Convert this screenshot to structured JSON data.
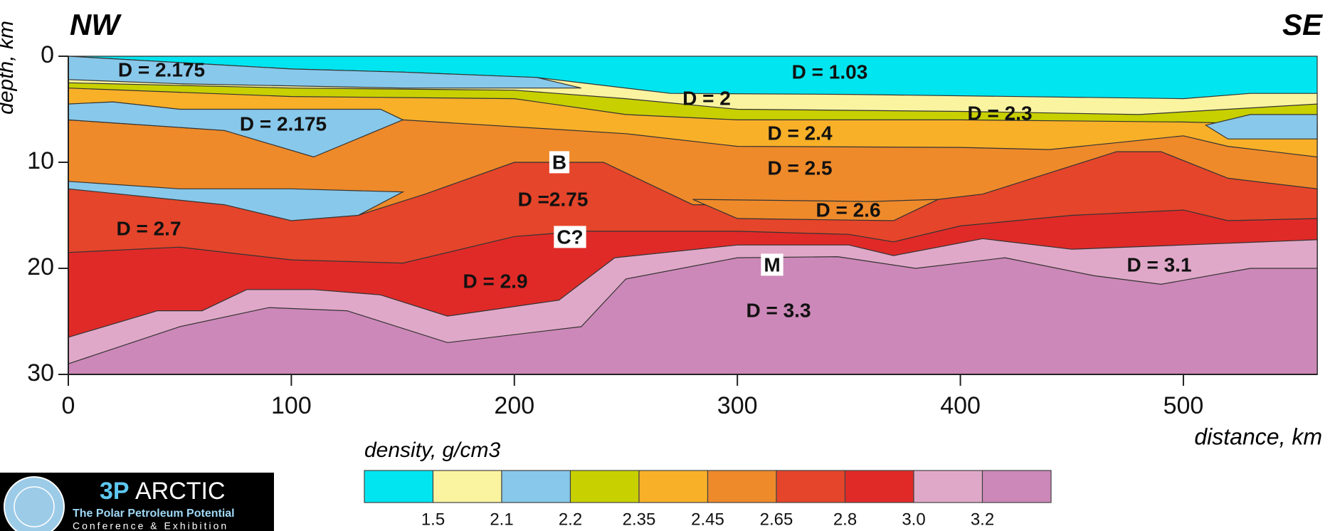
{
  "chart_data": {
    "type": "cross-section",
    "left_label": "NW",
    "right_label": "SE",
    "xlabel": "distance, km",
    "ylabel": "depth, km",
    "xlim": [
      0,
      560
    ],
    "ylim": [
      0,
      30
    ],
    "y_inverted": true,
    "xticks": [
      0,
      100,
      200,
      300,
      400,
      500
    ],
    "yticks": [
      0,
      10,
      20,
      30
    ],
    "bodies": [
      {
        "kind": "layer",
        "color": "#00e5f0",
        "x": [
          0,
          560
        ],
        "depth": [
          0,
          0
        ]
      },
      {
        "kind": "layer",
        "color": "#faf3a0",
        "x": [
          0,
          100,
          150,
          210,
          270,
          350,
          500,
          530,
          560
        ],
        "depth": [
          0,
          1.2,
          1.5,
          2,
          3.5,
          3.6,
          4,
          3.5,
          3.5
        ]
      },
      {
        "kind": "layer",
        "color": "#c8d000",
        "x": [
          0,
          100,
          200,
          250,
          300,
          400,
          480,
          520,
          560
        ],
        "depth": [
          2.5,
          3,
          3.2,
          4,
          5,
          5.2,
          5.5,
          5,
          4.5
        ]
      },
      {
        "kind": "layer",
        "color": "#f8b028",
        "x": [
          0,
          100,
          200,
          250,
          300,
          400,
          500,
          560
        ],
        "depth": [
          3,
          3.8,
          4,
          5.5,
          6,
          6,
          6.2,
          6.5
        ]
      },
      {
        "kind": "layer",
        "color": "#ee8a2a",
        "x": [
          0,
          70,
          110,
          150,
          250,
          300,
          400,
          440,
          500,
          520,
          560
        ],
        "depth": [
          6,
          7,
          9.3,
          6,
          7.3,
          8.5,
          8.6,
          8.8,
          7.5,
          8.5,
          9.5
        ]
      },
      {
        "kind": "layer",
        "color": "#e5452a",
        "x": [
          0,
          50,
          100,
          130,
          160,
          200,
          240,
          280,
          350,
          370,
          390,
          410,
          470,
          490,
          520,
          560
        ],
        "depth": [
          12.5,
          13,
          14,
          15,
          13,
          10,
          10,
          14,
          14,
          15.5,
          13.5,
          13,
          9,
          9,
          11.5,
          12.5
        ]
      },
      {
        "kind": "layer",
        "color": "#e02a28",
        "x": [
          0,
          50,
          100,
          150,
          200,
          230,
          300,
          350,
          370,
          400,
          450,
          500,
          520,
          560
        ],
        "depth": [
          18.5,
          18,
          19.2,
          19.5,
          17,
          16.5,
          16.5,
          16.8,
          17.5,
          16,
          15,
          14.5,
          15.5,
          15.3
        ]
      },
      {
        "kind": "layer",
        "color": "#e0a8c8",
        "x": [
          0,
          40,
          60,
          80,
          110,
          140,
          170,
          220,
          245,
          300,
          350,
          370,
          410,
          450,
          500,
          560
        ],
        "depth": [
          26.5,
          24,
          24,
          22,
          22,
          22.5,
          24.5,
          23,
          19,
          17.8,
          17.8,
          18.8,
          17.2,
          18.2,
          17.8,
          17.3
        ]
      },
      {
        "kind": "layer",
        "color": "#cc88b8",
        "x": [
          0,
          50,
          90,
          125,
          170,
          230,
          250,
          300,
          345,
          380,
          420,
          460,
          490,
          530,
          560
        ],
        "depth": [
          29,
          25.5,
          23.7,
          24,
          27,
          25.5,
          21,
          19,
          18.9,
          20,
          19,
          20.7,
          21.5,
          20,
          20
        ]
      },
      {
        "kind": "lens",
        "color": "#88c8ea",
        "x": [
          0,
          100,
          150,
          210,
          230,
          150,
          50,
          0
        ],
        "depth": [
          0,
          1.2,
          1.5,
          2,
          3,
          3,
          2.6,
          2.2
        ]
      },
      {
        "kind": "lens",
        "color": "#88c8ea",
        "x": [
          0,
          20,
          50,
          140,
          150,
          110,
          70,
          0
        ],
        "depth": [
          4.5,
          4.3,
          5,
          5,
          6,
          9.5,
          7,
          6
        ]
      },
      {
        "kind": "lens",
        "color": "#88c8ea",
        "x": [
          510,
          530,
          560,
          560,
          520
        ],
        "depth": [
          6.5,
          5.5,
          5.5,
          7.8,
          7.8
        ]
      },
      {
        "kind": "lens",
        "color": "#88c8ea",
        "x": [
          0,
          50,
          100,
          150,
          130,
          100,
          70,
          0
        ],
        "depth": [
          11.8,
          12.5,
          12.5,
          12.8,
          15,
          15.5,
          14,
          12.5
        ]
      },
      {
        "kind": "lens",
        "color": "#ee8a2a",
        "x": [
          280,
          360,
          390,
          370,
          300
        ],
        "depth": [
          13.5,
          13.7,
          13.5,
          15.5,
          15.3
        ]
      }
    ],
    "annotations": [
      "D = 2.175",
      "D = 2.175",
      "D = 1.03",
      "D = 2",
      "D = 2.3",
      "D = 2.4",
      "D = 2.5",
      "D = 2.6",
      "B",
      "D =2.75",
      "C?",
      "D = 2.7",
      "D = 2.9",
      "M",
      "D = 3.3",
      "D = 3.1"
    ],
    "legend": {
      "title": "density, g/cm3",
      "colors": [
        "#00e5f0",
        "#faf3a0",
        "#88c8ea",
        "#c8d000",
        "#f8b028",
        "#ee8a2a",
        "#e5452a",
        "#e02a28",
        "#e0a8c8",
        "#cc88b8"
      ],
      "ticks": [
        1.5,
        2.1,
        2.2,
        2.35,
        2.45,
        2.65,
        2.8,
        {
          "value": 3,
          "label": "3.0"
        },
        3.2
      ]
    }
  },
  "logo": {
    "prefix": "3P",
    "name": "ARCTIC",
    "line1": "The Polar Petroleum Potential",
    "line2": "Conference & Exhibition"
  }
}
